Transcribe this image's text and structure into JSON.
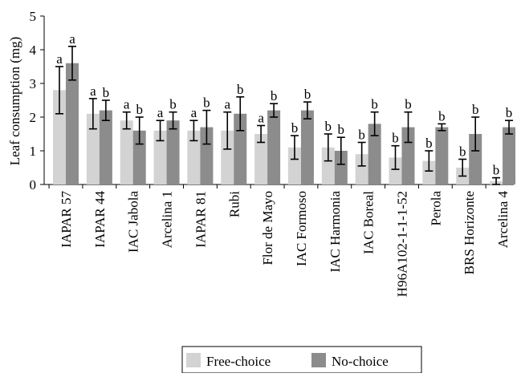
{
  "chart_data": {
    "type": "bar",
    "ylabel": "Leaf consumption (mg)",
    "ylim": [
      0,
      5
    ],
    "yticks": [
      0,
      1,
      2,
      3,
      4,
      5
    ],
    "grid": false,
    "legend_position": "bottom",
    "categories": [
      "IAPAR 57",
      "IAPAR 44",
      "IAC Jabola",
      "Arcelina 1",
      "IAPAR 81",
      "Rubi",
      "Flor de Mayo",
      "IAC Formoso",
      "IAC Harmonia",
      "IAC Boreal",
      "H96A102-1-1-1-52",
      "Perola",
      "BRS Horizonte",
      "Arcelina 4"
    ],
    "series": [
      {
        "name": "Free-choice",
        "color": "#d3d3d3",
        "values": [
          2.8,
          2.1,
          1.9,
          1.6,
          1.6,
          1.6,
          1.5,
          1.1,
          1.1,
          0.9,
          0.8,
          0.7,
          0.5,
          0.1
        ],
        "errors": [
          0.7,
          0.45,
          0.25,
          0.3,
          0.3,
          0.55,
          0.25,
          0.35,
          0.4,
          0.35,
          0.35,
          0.3,
          0.25,
          0.1
        ],
        "letters": [
          "a",
          "a",
          "a",
          "a",
          "a",
          "a",
          "a",
          "b",
          "b",
          "b",
          "b",
          "b",
          "b",
          "b"
        ]
      },
      {
        "name": "No-choice",
        "color": "#8c8c8c",
        "values": [
          3.6,
          2.2,
          1.6,
          1.9,
          1.7,
          2.1,
          2.2,
          2.2,
          1.0,
          1.8,
          1.7,
          1.7,
          1.5,
          1.7
        ],
        "errors": [
          0.5,
          0.3,
          0.4,
          0.25,
          0.5,
          0.5,
          0.2,
          0.25,
          0.4,
          0.35,
          0.45,
          0.1,
          0.5,
          0.2
        ],
        "letters": [
          "a",
          "b",
          "b",
          "b",
          "b",
          "b",
          "b",
          "b",
          "b",
          "b",
          "b",
          "b",
          "b",
          "b"
        ]
      }
    ]
  }
}
